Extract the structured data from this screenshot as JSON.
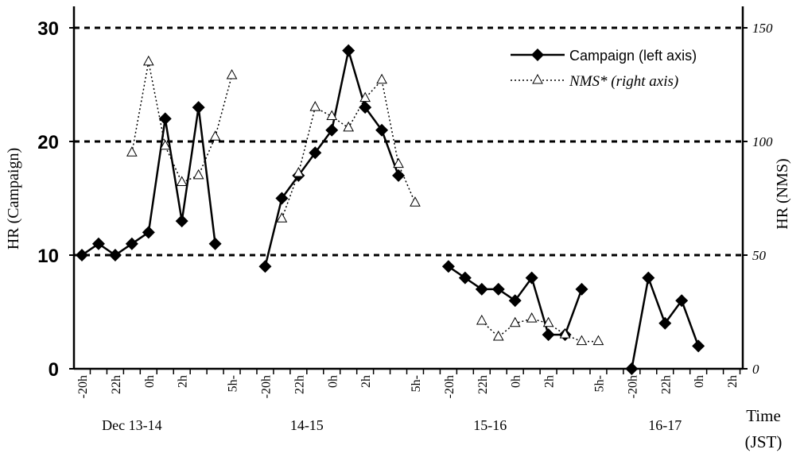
{
  "chart_data": {
    "type": "line",
    "xlabel": [
      "Time",
      "(JST)"
    ],
    "ylabel_left": "HR (Campaign)",
    "ylabel_right": "HR (NMS)",
    "ylim_left": [
      0,
      30
    ],
    "ylim_right": [
      0,
      150
    ],
    "yticks_left": [
      "0",
      "10",
      "20",
      "30"
    ],
    "yticks_right": [
      "0",
      "50",
      "100",
      "150"
    ],
    "grid_values_left": [
      10,
      20,
      30
    ],
    "legend_position": "top-right",
    "x_tick_labels": [
      "-20h",
      "22h",
      "0h",
      "2h",
      "5h-",
      "-20h",
      "22h",
      "0h",
      "2h",
      "5h-",
      "-20h",
      "22h",
      "0h",
      "2h",
      "5h-",
      "-20h",
      "22h",
      "0h",
      "2h"
    ],
    "x_tick_index": [
      0,
      2,
      4,
      6,
      9,
      11,
      13,
      15,
      17,
      20,
      22,
      24,
      26,
      28,
      31,
      33,
      35,
      37,
      39
    ],
    "x_minor_count": 40,
    "day_labels": [
      "Dec 13-14",
      "14-15",
      "15-16",
      "16-17"
    ],
    "series": [
      {
        "name": "Campaign (left axis)",
        "axis": "left",
        "color": "#000000",
        "marker": "diamond",
        "style": "solid",
        "segments": [
          [
            [
              0,
              10
            ],
            [
              1,
              11
            ],
            [
              2,
              10
            ],
            [
              3,
              11
            ],
            [
              4,
              12
            ],
            [
              5,
              22
            ],
            [
              6,
              13
            ],
            [
              7,
              23
            ],
            [
              8,
              11
            ]
          ],
          [
            [
              11,
              9
            ],
            [
              12,
              15
            ],
            [
              13,
              17
            ],
            [
              14,
              19
            ],
            [
              15,
              21
            ],
            [
              16,
              28
            ],
            [
              17,
              23
            ],
            [
              18,
              21
            ],
            [
              19,
              17
            ]
          ],
          [
            [
              22,
              9
            ],
            [
              23,
              8
            ],
            [
              24,
              7
            ],
            [
              25,
              7
            ],
            [
              26,
              6
            ],
            [
              27,
              8
            ],
            [
              28,
              3
            ],
            [
              29,
              3
            ],
            [
              30,
              7
            ]
          ],
          [
            [
              33,
              0
            ],
            [
              34,
              8
            ],
            [
              35,
              4
            ],
            [
              36,
              6
            ],
            [
              37,
              2
            ]
          ]
        ]
      },
      {
        "name": "NMS* (right axis)",
        "axis": "right",
        "color": "#000000",
        "marker": "triangle",
        "style": "dotted",
        "segments": [
          [
            [
              3,
              95
            ],
            [
              4,
              135
            ],
            [
              5,
              98
            ],
            [
              6,
              82
            ],
            [
              7,
              85
            ],
            [
              8,
              102
            ],
            [
              9,
              129
            ]
          ],
          [
            [
              12,
              66
            ],
            [
              13,
              86
            ],
            [
              14,
              115
            ],
            [
              15,
              111
            ],
            [
              16,
              106
            ],
            [
              17,
              119
            ],
            [
              18,
              127
            ],
            [
              19,
              90
            ],
            [
              20,
              73
            ]
          ],
          [
            [
              24,
              21
            ],
            [
              25,
              14
            ],
            [
              26,
              20
            ],
            [
              27,
              22
            ],
            [
              28,
              20
            ],
            [
              29,
              15
            ],
            [
              30,
              12
            ],
            [
              31,
              12
            ]
          ]
        ]
      }
    ]
  }
}
